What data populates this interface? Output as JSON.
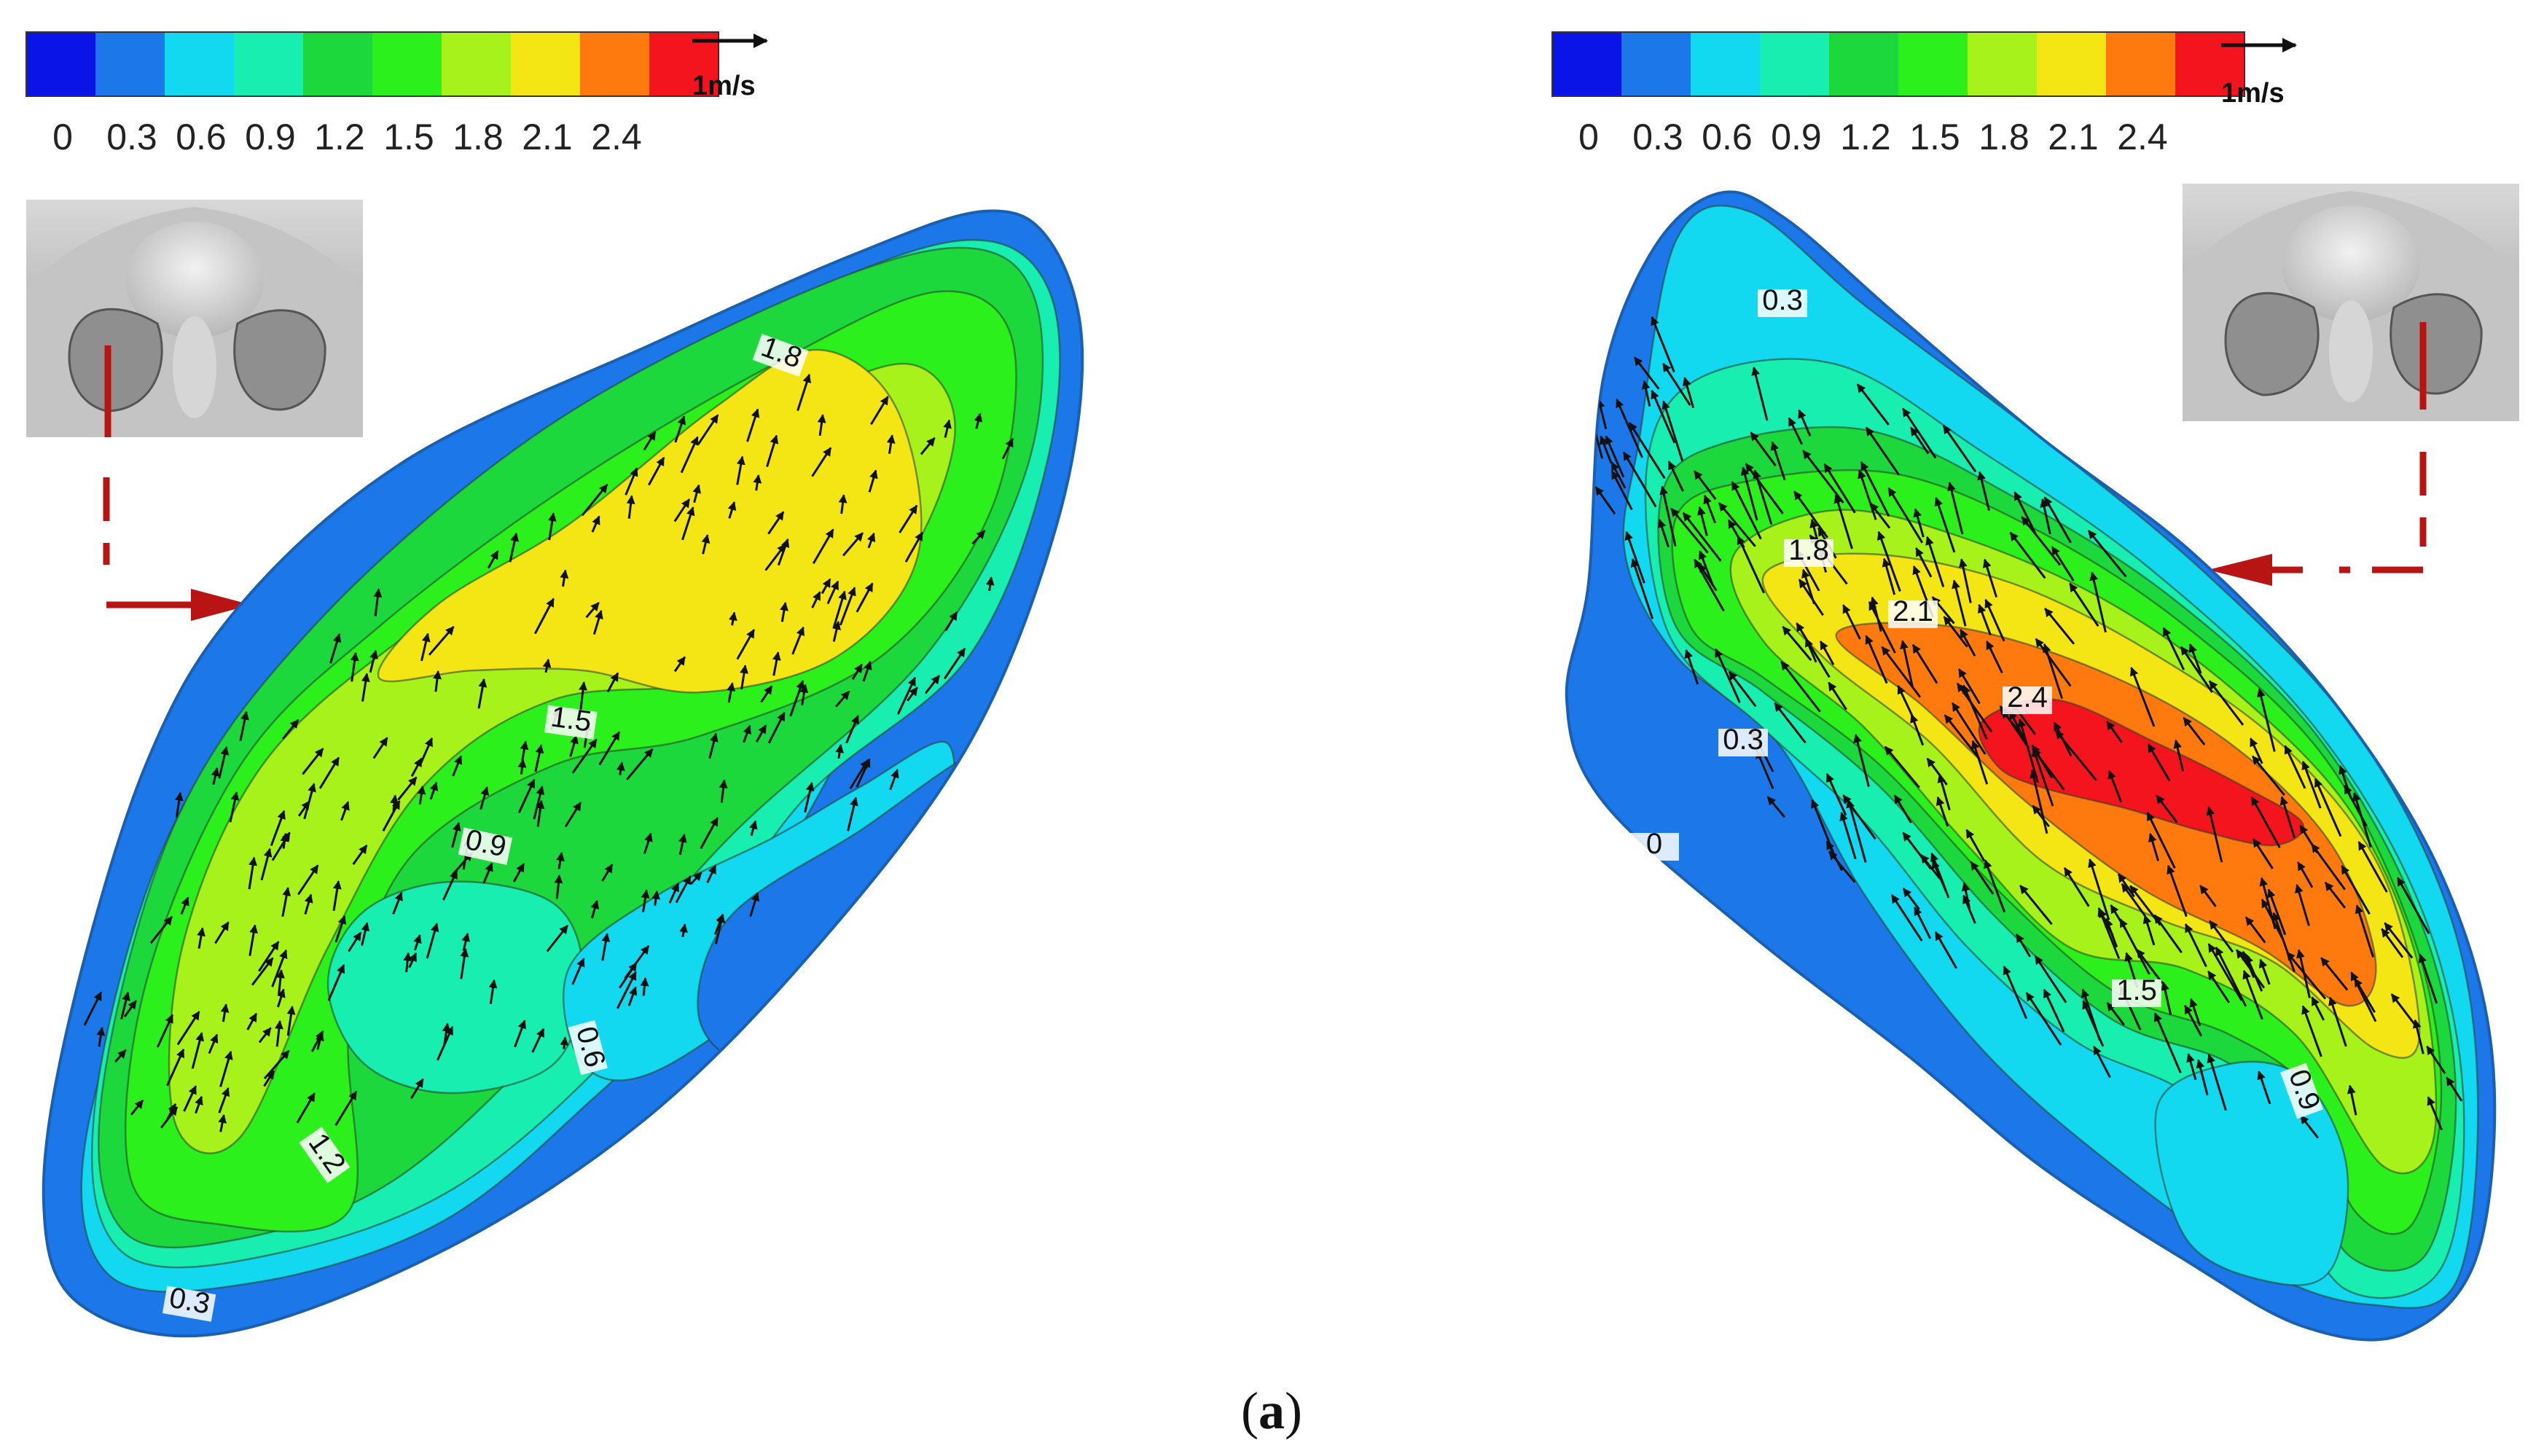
{
  "colorbar": {
    "colors": [
      "#0a14e6",
      "#1c78e8",
      "#12d8f0",
      "#18eeb0",
      "#1cd83c",
      "#2cf01c",
      "#a6f21a",
      "#f4e614",
      "#ff7a0e",
      "#f4141e"
    ],
    "ticks": [
      "0",
      "0.3",
      "0.6",
      "0.9",
      "1.2",
      "1.5",
      "1.8",
      "2.1",
      "2.4"
    ]
  },
  "scale_arrow_label": "1m/s",
  "left_panel": {
    "contour_labels": [
      "1.8",
      "1.5",
      "0.9",
      "0.6",
      "1.2",
      "0.3"
    ]
  },
  "right_panel": {
    "contour_labels": [
      "0.3",
      "1.8",
      "2.1",
      "2.4",
      "0.3",
      "0",
      "1.5",
      "0.9"
    ]
  },
  "indicator_color": "#b81414",
  "caption": {
    "open": "(",
    "letter": "a",
    "close": ")"
  }
}
